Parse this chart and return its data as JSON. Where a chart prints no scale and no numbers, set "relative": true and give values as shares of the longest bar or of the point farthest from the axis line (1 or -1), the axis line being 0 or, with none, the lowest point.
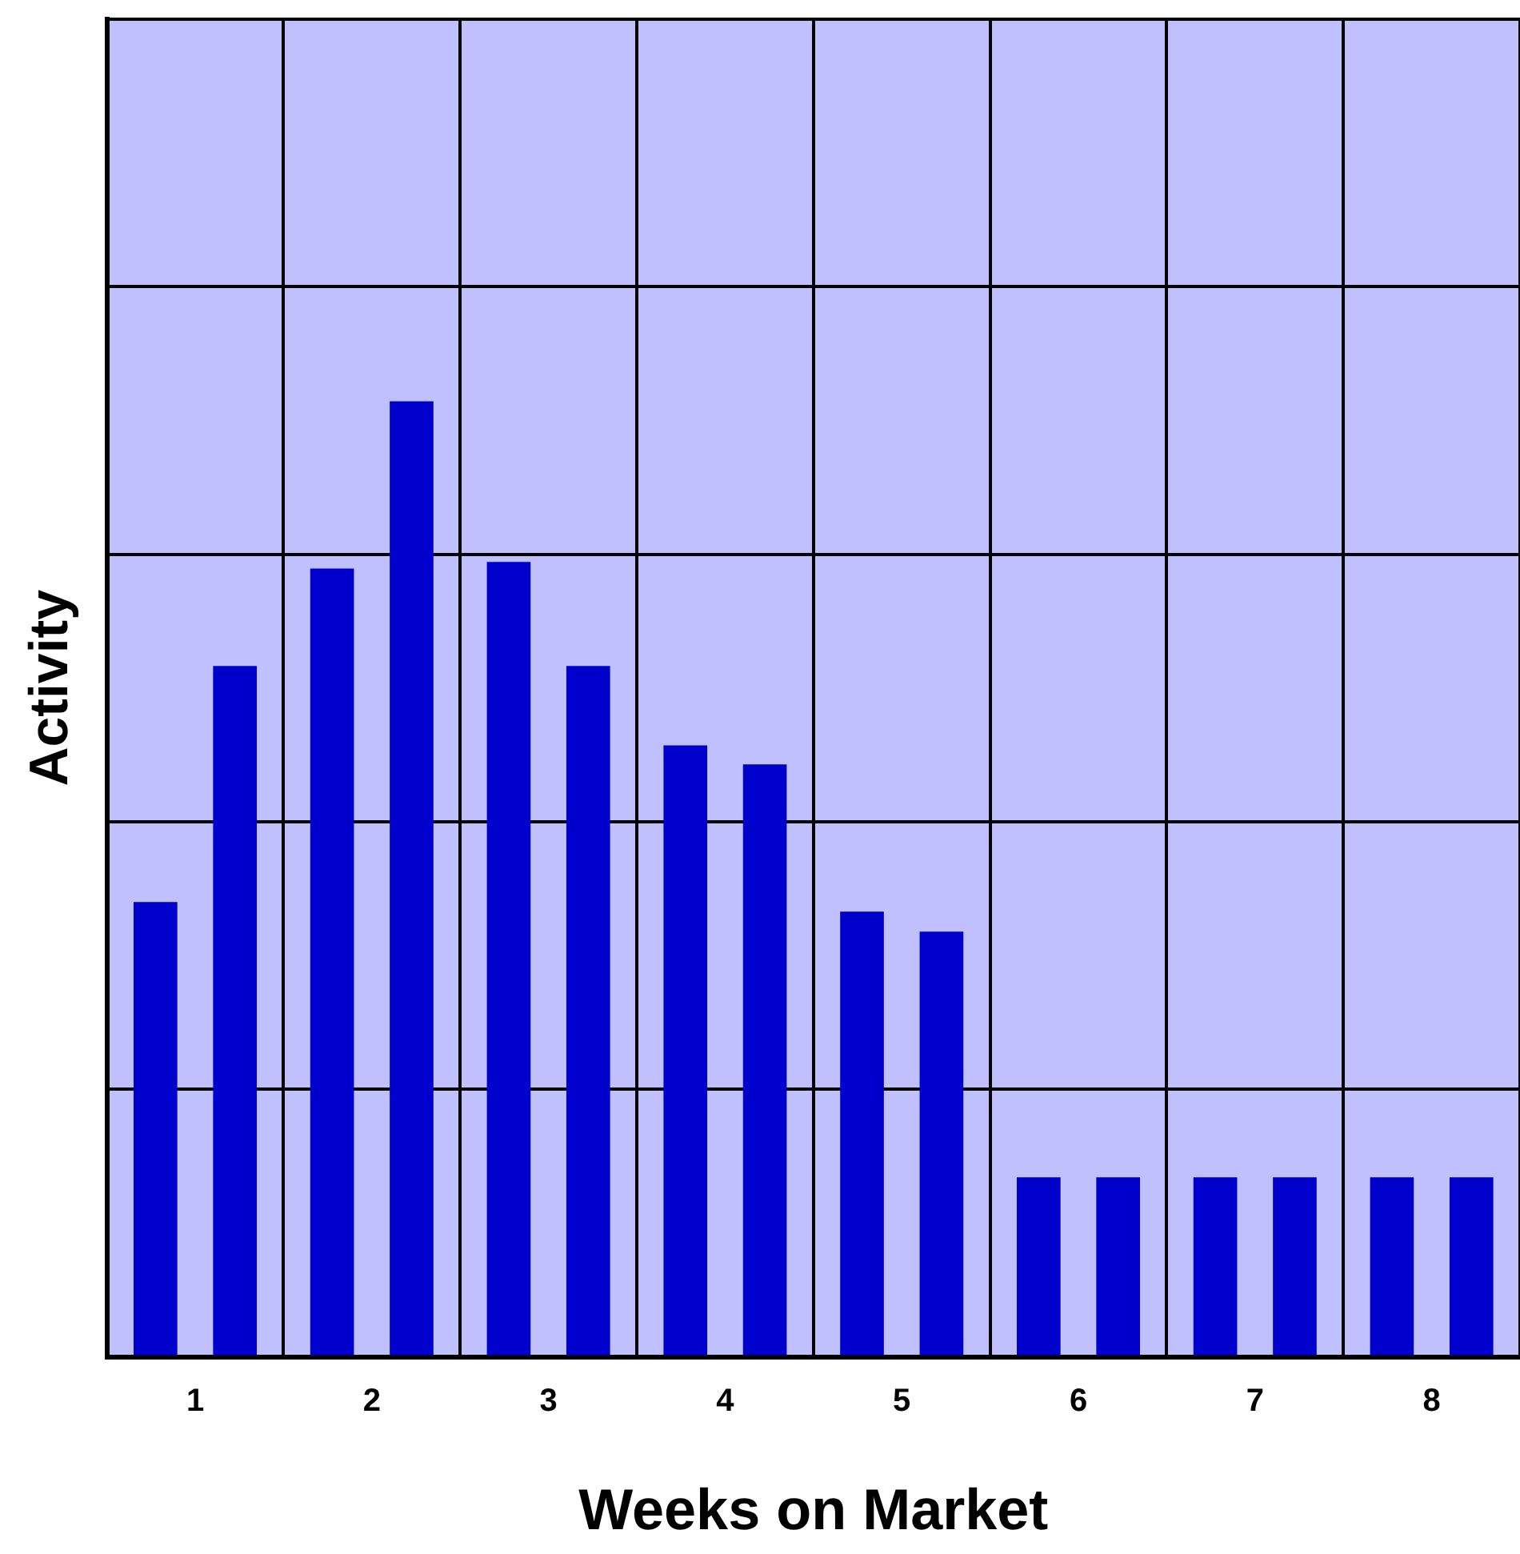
{
  "chart_data": {
    "type": "bar",
    "xlabel": "Weeks on Market",
    "ylabel": "Activity",
    "categories": [
      "1",
      "2",
      "3",
      "4",
      "5",
      "6",
      "7",
      "8"
    ],
    "relative": true,
    "grid": true,
    "legend": false,
    "series": [
      {
        "color": "#0000cc",
        "values": [
          0.476,
          0.825,
          0.832,
          0.64,
          0.466,
          0.188,
          0.188,
          0.188
        ]
      },
      {
        "color": "#0000cc",
        "values": [
          0.723,
          1,
          0.723,
          0.62,
          0.445,
          0.188,
          0.188,
          0.188
        ]
      }
    ]
  }
}
